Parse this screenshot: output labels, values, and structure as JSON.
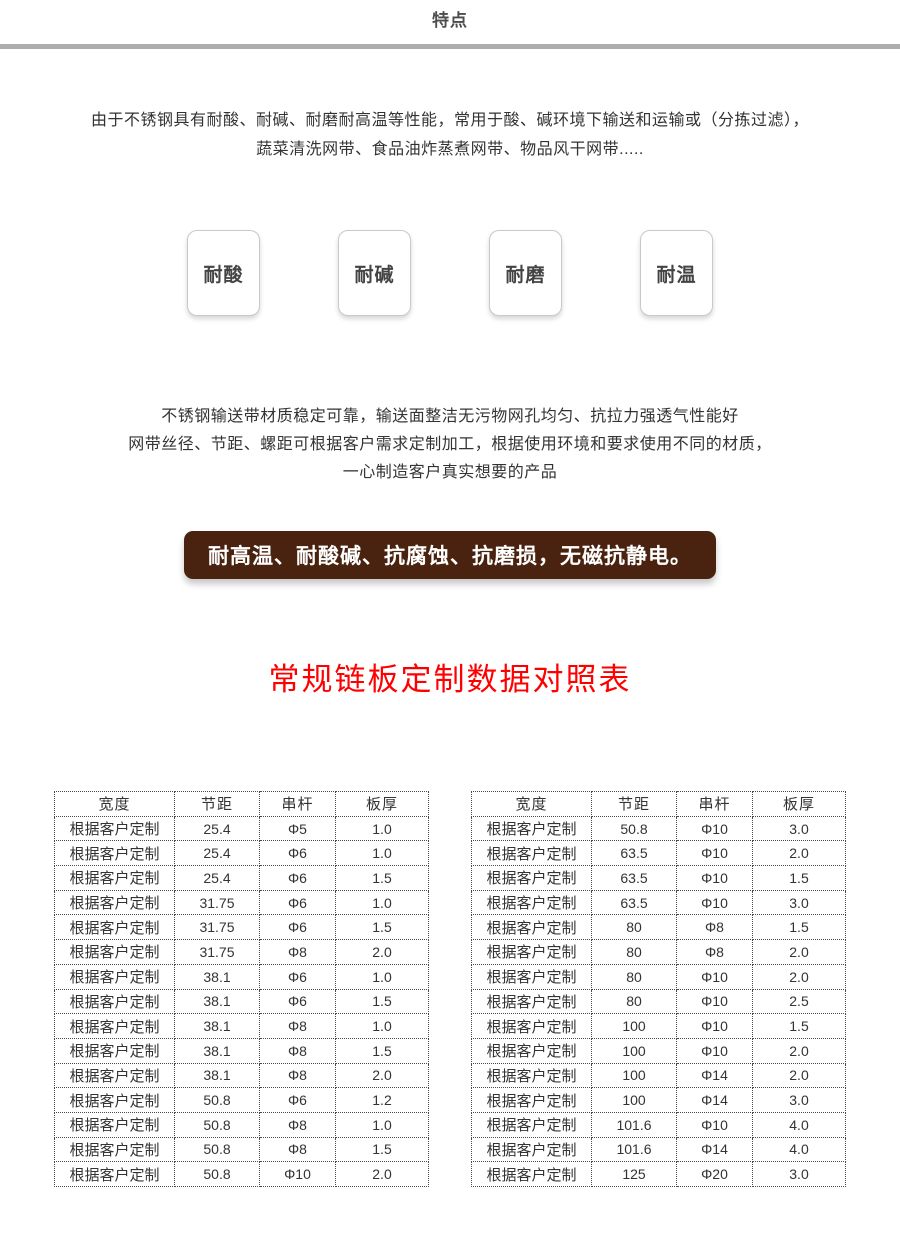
{
  "header": {
    "title": "特点"
  },
  "intro": {
    "line1": "由于不锈钢具有耐酸、耐碱、耐磨耐高温等性能，常用于酸、碱环境下输送和运输或（分拣过滤），",
    "line2": "蔬菜清洗网带、食品油炸蒸煮网带、物品风干网带....."
  },
  "badges": [
    {
      "label": "耐酸"
    },
    {
      "label": "耐碱"
    },
    {
      "label": "耐磨"
    },
    {
      "label": "耐温"
    }
  ],
  "description": {
    "line1": "不锈钢输送带材质稳定可靠，输送面整洁无污物网孔均匀、抗拉力强透气性能好",
    "line2": "网带丝径、节距、螺距可根据客户需求定制加工，根据使用环境和要求使用不同的材质，",
    "line3": "一心制造客户真实想要的产品"
  },
  "banner": {
    "text": "耐高温、耐酸碱、抗腐蚀、抗磨损，无磁抗静电。"
  },
  "table_section": {
    "title": "常规链板定制数据对照表"
  },
  "spec_tables": {
    "columns": [
      "宽度",
      "节距",
      "串杆",
      "板厚"
    ],
    "left_rows": [
      [
        "根据客户定制",
        "25.4",
        "Φ5",
        "1.0"
      ],
      [
        "根据客户定制",
        "25.4",
        "Φ6",
        "1.0"
      ],
      [
        "根据客户定制",
        "25.4",
        "Φ6",
        "1.5"
      ],
      [
        "根据客户定制",
        "31.75",
        "Φ6",
        "1.0"
      ],
      [
        "根据客户定制",
        "31.75",
        "Φ6",
        "1.5"
      ],
      [
        "根据客户定制",
        "31.75",
        "Φ8",
        "2.0"
      ],
      [
        "根据客户定制",
        "38.1",
        "Φ6",
        "1.0"
      ],
      [
        "根据客户定制",
        "38.1",
        "Φ6",
        "1.5"
      ],
      [
        "根据客户定制",
        "38.1",
        "Φ8",
        "1.0"
      ],
      [
        "根据客户定制",
        "38.1",
        "Φ8",
        "1.5"
      ],
      [
        "根据客户定制",
        "38.1",
        "Φ8",
        "2.0"
      ],
      [
        "根据客户定制",
        "50.8",
        "Φ6",
        "1.2"
      ],
      [
        "根据客户定制",
        "50.8",
        "Φ8",
        "1.0"
      ],
      [
        "根据客户定制",
        "50.8",
        "Φ8",
        "1.5"
      ],
      [
        "根据客户定制",
        "50.8",
        "Φ10",
        "2.0"
      ]
    ],
    "right_rows": [
      [
        "根据客户定制",
        "50.8",
        "Φ10",
        "3.0"
      ],
      [
        "根据客户定制",
        "63.5",
        "Φ10",
        "2.0"
      ],
      [
        "根据客户定制",
        "63.5",
        "Φ10",
        "1.5"
      ],
      [
        "根据客户定制",
        "63.5",
        "Φ10",
        "3.0"
      ],
      [
        "根据客户定制",
        "80",
        "Φ8",
        "1.5"
      ],
      [
        "根据客户定制",
        "80",
        "Φ8",
        "2.0"
      ],
      [
        "根据客户定制",
        "80",
        "Φ10",
        "2.0"
      ],
      [
        "根据客户定制",
        "80",
        "Φ10",
        "2.5"
      ],
      [
        "根据客户定制",
        "100",
        "Φ10",
        "1.5"
      ],
      [
        "根据客户定制",
        "100",
        "Φ10",
        "2.0"
      ],
      [
        "根据客户定制",
        "100",
        "Φ14",
        "2.0"
      ],
      [
        "根据客户定制",
        "100",
        "Φ14",
        "3.0"
      ],
      [
        "根据客户定制",
        "101.6",
        "Φ10",
        "4.0"
      ],
      [
        "根据客户定制",
        "101.6",
        "Φ14",
        "4.0"
      ],
      [
        "根据客户定制",
        "125",
        "Φ20",
        "3.0"
      ]
    ]
  },
  "colors": {
    "banner_bg": "#4a2310",
    "banner_text": "#ffffff",
    "table_title_red": "#ff0000",
    "divider_gray": "#adadad"
  }
}
